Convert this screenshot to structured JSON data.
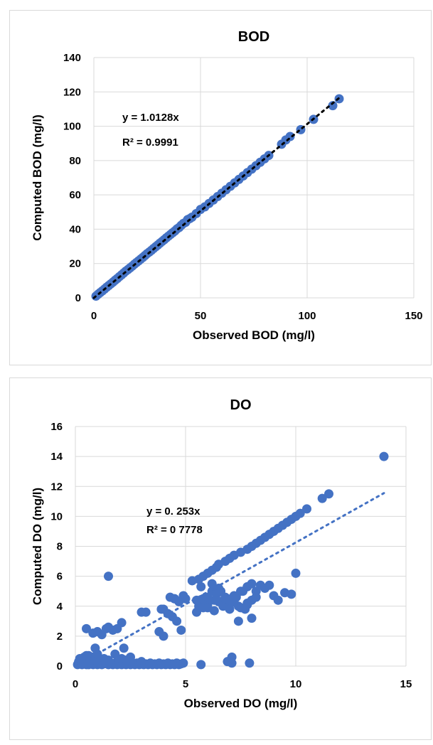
{
  "chart_data": [
    {
      "type": "scatter",
      "title": "BOD",
      "xlabel": "Observed BOD (mg/l)",
      "ylabel": "Computed BOD  (mg/l)",
      "xlim": [
        0,
        150
      ],
      "ylim": [
        0,
        140
      ],
      "xticks": [
        0,
        50,
        100,
        150
      ],
      "yticks": [
        0,
        20,
        40,
        60,
        80,
        100,
        120,
        140
      ],
      "xtick_labels": [
        "0",
        "50",
        "100",
        "150"
      ],
      "ytick_labels": [
        "0",
        "20",
        "40",
        "60",
        "80",
        "100",
        "120",
        "140"
      ],
      "grid": true,
      "marker_color": "#4472c4",
      "trendline": {
        "slope": 1.0128,
        "color": "#000000",
        "style": "dotted"
      },
      "annotations": [
        "y = 1.0128x",
        "R² = 0.9991"
      ],
      "series": [
        {
          "x": [
            1,
            2,
            3,
            4,
            5,
            6,
            7,
            8,
            9,
            10,
            11,
            12,
            13,
            14,
            15,
            16,
            17,
            18,
            19,
            20,
            21,
            22,
            23,
            24,
            25,
            26,
            27,
            28,
            29,
            30,
            31,
            32,
            33,
            34,
            35,
            36,
            37,
            38,
            39,
            40,
            41,
            42,
            43,
            44,
            45,
            46,
            48,
            50,
            52,
            54,
            56,
            58,
            60,
            62,
            64,
            66,
            68,
            70,
            72,
            74,
            76,
            78,
            80,
            82,
            88,
            90,
            92,
            97,
            103,
            112,
            115
          ],
          "y": [
            1,
            2.1,
            3.1,
            4.1,
            5.1,
            6.2,
            7.2,
            8.2,
            9.2,
            10.3,
            11.3,
            12.4,
            13.4,
            14.5,
            15.6,
            16.5,
            17.5,
            18.5,
            19.6,
            20.6,
            21.6,
            22.6,
            23.6,
            24.7,
            25.8,
            26.7,
            27.7,
            28.8,
            29.8,
            30.8,
            31.9,
            32.9,
            33.9,
            35,
            36,
            37,
            38,
            39,
            40.2,
            41,
            42.3,
            43.4,
            44,
            45.6,
            46.2,
            47,
            49.1,
            51.5,
            53,
            55,
            57,
            59,
            61,
            63,
            65,
            67,
            69,
            71,
            73,
            75,
            77,
            79,
            81,
            83,
            89.5,
            92,
            94,
            98,
            104,
            112,
            116
          ]
        }
      ]
    },
    {
      "type": "scatter",
      "title": "DO",
      "xlabel": "Observed DO (mg/l)",
      "ylabel": "Computed DO  (mg/l)",
      "xlim": [
        0,
        15
      ],
      "ylim": [
        0,
        16
      ],
      "xticks": [
        0,
        5,
        10,
        15
      ],
      "yticks": [
        0,
        2,
        4,
        6,
        8,
        10,
        12,
        14,
        16
      ],
      "xtick_labels": [
        "0",
        "5",
        "10",
        "15"
      ],
      "ytick_labels": [
        "0",
        "2",
        "4",
        "6",
        "8",
        "10",
        "12",
        "14",
        "16"
      ],
      "grid": true,
      "marker_color": "#4472c4",
      "trendline": {
        "slope": 0.8253,
        "color": "#4472c4",
        "style": "dotted"
      },
      "annotations": [
        "y = 0.  253x",
        "R² = 0  7778"
      ],
      "series": [
        {
          "x": [
            0.1,
            0.15,
            0.2,
            0.3,
            0.4,
            0.5,
            0.6,
            0.7,
            0.8,
            0.9,
            1.0,
            1.1,
            1.2,
            1.3,
            1.4,
            1.5,
            1.6,
            1.7,
            1.8,
            1.9,
            2.0,
            2.1,
            2.2,
            2.3,
            2.4,
            2.5,
            2.6,
            2.7,
            2.8,
            2.9,
            3.0,
            3.1,
            3.2,
            3.3,
            3.4,
            3.5,
            3.6,
            3.7,
            3.8,
            3.9,
            4.0,
            4.1,
            4.2,
            4.3,
            4.4,
            4.5,
            4.6,
            4.7,
            4.8,
            4.9,
            0.2,
            0.3,
            0.4,
            0.5,
            0.6,
            0.8,
            1.0,
            1.2,
            0.5,
            1.0,
            1.5,
            2.0,
            0.7,
            1.3,
            2.5,
            3.0,
            0.3,
            0.6,
            0.9,
            0.5,
            1.0,
            0.9,
            0.5,
            0.8,
            1.0,
            1.2,
            1.4,
            1.5,
            1.7,
            1.9,
            2.1,
            1.5,
            1.8,
            2.2,
            3.0,
            3.2,
            2.1,
            2.3,
            2.5,
            3.8,
            4.0,
            4.2,
            4.5,
            4.8,
            3.9,
            4.3,
            4.4,
            4.6,
            4.9,
            5.5,
            5.0,
            4.5,
            4.7,
            4.0,
            5.3,
            5.6,
            5.8,
            6.0,
            6.2,
            6.4,
            6.5,
            6.8,
            7.0,
            7.2,
            7.5,
            7.8,
            8.0,
            8.2,
            8.4,
            8.6,
            8.8,
            9.0,
            9.2,
            9.4,
            9.6,
            9.8,
            10.0,
            10.2,
            10.5,
            11.2,
            11.5,
            5.6,
            5.8,
            6.0,
            6.2,
            6.4,
            6.6,
            6.8,
            7.0,
            7.2,
            7.4,
            7.6,
            7.8,
            8.0,
            8.2,
            8.4,
            8.6,
            8.8,
            9.0,
            9.2,
            9.5,
            10.0,
            5.5,
            5.8,
            6.0,
            6.3,
            6.5,
            6.7,
            7.0,
            7.3,
            7.5,
            7.8,
            8.0,
            8.2,
            6.0,
            6.2,
            6.5,
            6.8,
            7.1,
            7.4,
            7.7,
            8.0,
            5.7,
            6.0,
            6.3,
            6.6,
            6.9,
            7.2,
            7.5,
            7.8,
            9.8,
            7.1,
            7.9,
            5.7,
            6.9,
            7.1,
            14.0
          ],
          "y": [
            0.1,
            0.3,
            0.2,
            0.1,
            0.2,
            0.1,
            0.3,
            0.2,
            0.1,
            0.2,
            0.1,
            0.2,
            0.1,
            0.15,
            0.2,
            0.1,
            0.2,
            0.1,
            0.2,
            0.1,
            0.2,
            0.1,
            0.15,
            0.1,
            0.2,
            0.1,
            0.15,
            0.1,
            0.2,
            0.1,
            0.2,
            0.1,
            0.15,
            0.1,
            0.2,
            0.1,
            0.15,
            0.1,
            0.2,
            0.1,
            0.15,
            0.1,
            0.2,
            0.1,
            0.15,
            0.1,
            0.2,
            0.1,
            0.15,
            0.2,
            0.5,
            0.4,
            0.6,
            0.5,
            0.7,
            0.6,
            0.5,
            0.4,
            0.3,
            0.3,
            0.4,
            0.3,
            0.6,
            0.5,
            0.4,
            0.3,
            0.2,
            0.1,
            0.4,
            0.7,
            0.8,
            1.2,
            2.5,
            2.2,
            2.3,
            2.1,
            2.5,
            2.6,
            2.4,
            2.5,
            2.9,
            6.0,
            0.8,
            1.2,
            3.6,
            3.6,
            0.5,
            0.4,
            0.6,
            2.3,
            2.0,
            3.5,
            4.5,
            2.4,
            3.8,
            4.6,
            3.3,
            3.0,
            4.7,
            4.4,
            4.5,
            4.5,
            4.3,
            3.8,
            5.7,
            5.8,
            6.0,
            6.2,
            6.4,
            6.6,
            6.8,
            7.0,
            7.2,
            7.4,
            7.6,
            7.8,
            8.0,
            8.2,
            8.4,
            8.6,
            8.8,
            9.0,
            9.2,
            9.4,
            9.6,
            9.8,
            10.0,
            10.2,
            10.5,
            11.2,
            11.5,
            4.0,
            4.5,
            4.2,
            5.0,
            4.8,
            4.3,
            4.6,
            4.1,
            4.4,
            4.0,
            5.0,
            5.3,
            5.5,
            5.0,
            5.4,
            5.2,
            5.4,
            4.7,
            4.4,
            4.9,
            6.2,
            3.6,
            3.9,
            4.1,
            3.7,
            4.3,
            4.0,
            3.8,
            4.6,
            5.0,
            4.2,
            4.4,
            4.6,
            4.6,
            5.5,
            5.2,
            4.5,
            4.3,
            3.0,
            3.8,
            3.2,
            5.3,
            3.9,
            4.4,
            5.0,
            4.5,
            4.7,
            3.9,
            4.1,
            4.8,
            0.6,
            0.2,
            0.1,
            0.3,
            0.2,
            14.0
          ]
        }
      ]
    }
  ]
}
